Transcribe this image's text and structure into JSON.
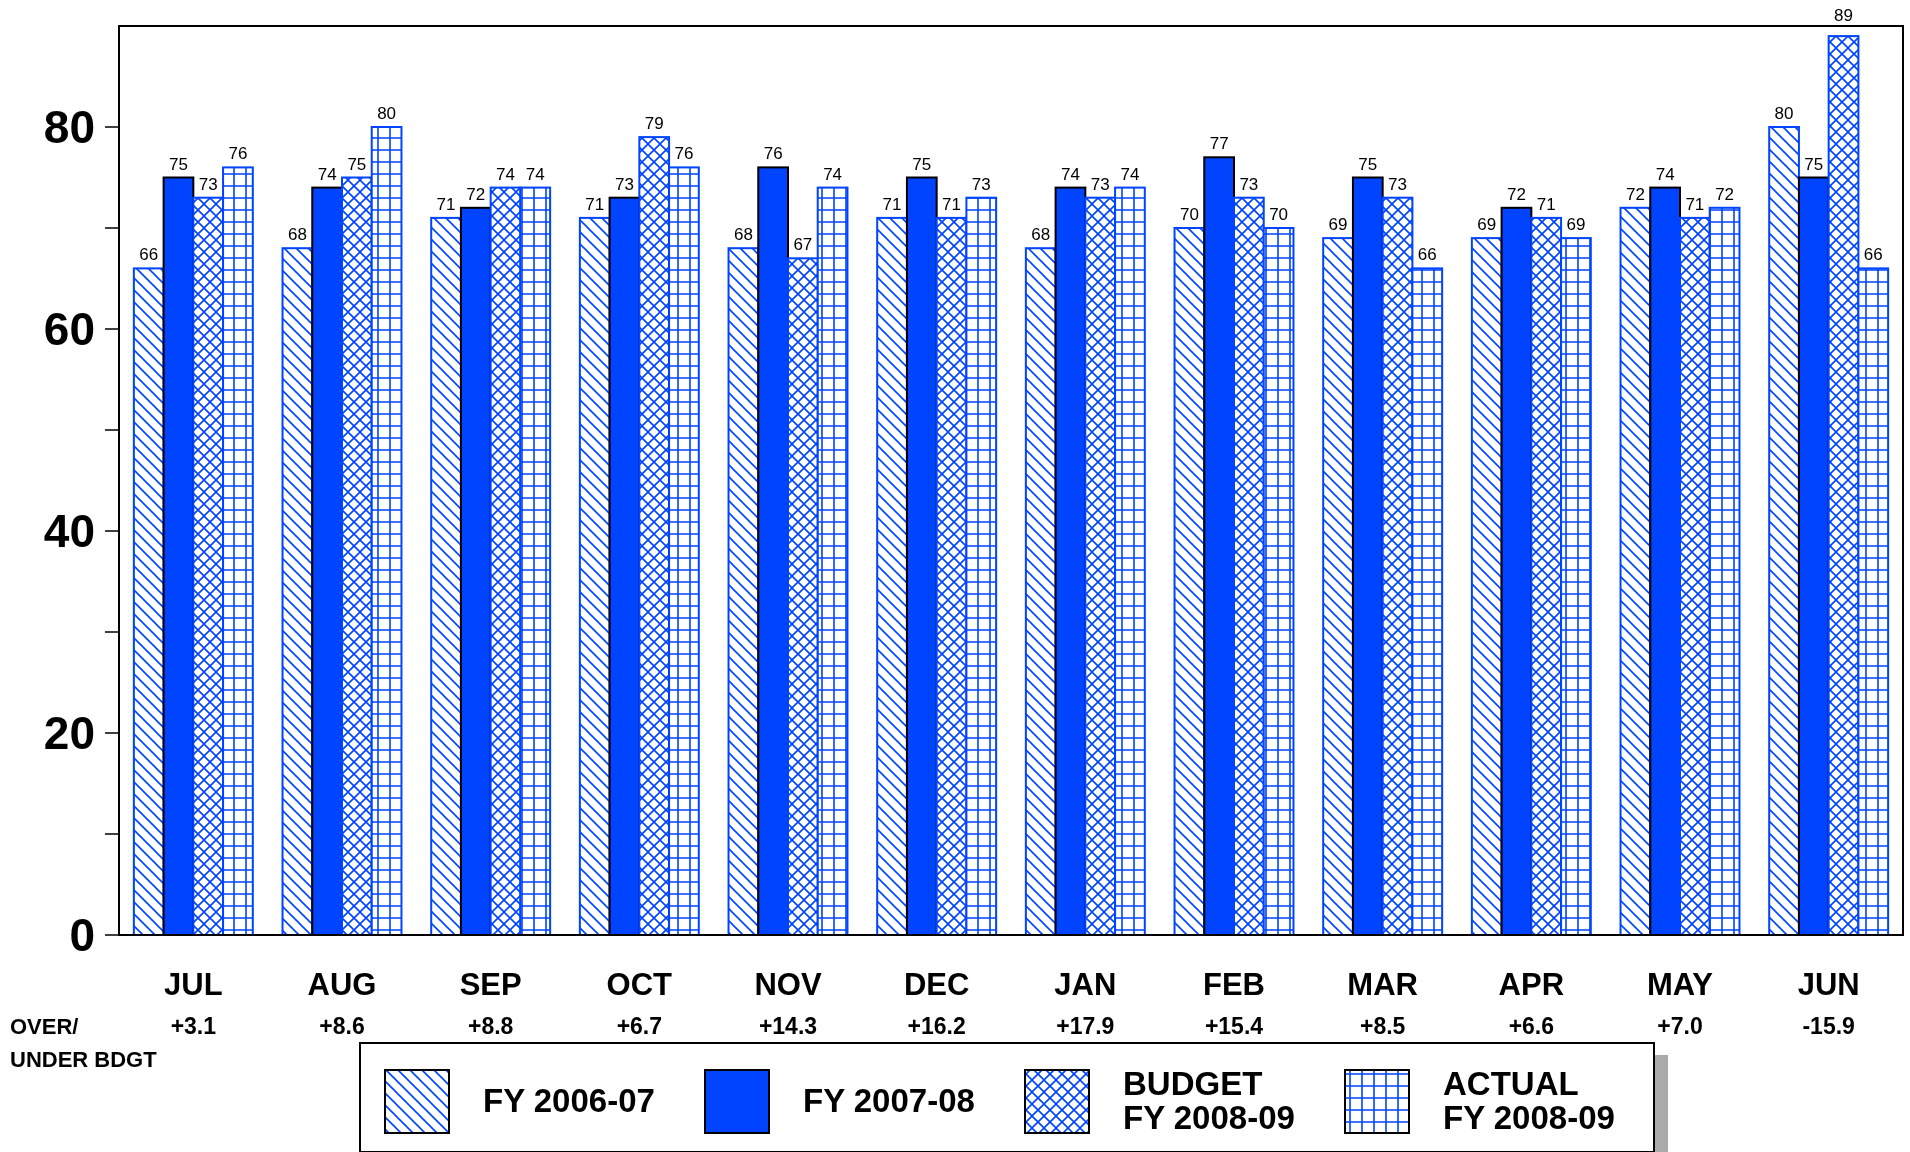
{
  "chart_data": {
    "type": "bar",
    "categories": [
      "JUL",
      "AUG",
      "SEP",
      "OCT",
      "NOV",
      "DEC",
      "JAN",
      "FEB",
      "MAR",
      "APR",
      "MAY",
      "JUN"
    ],
    "series": [
      {
        "name": "FY 2006-07",
        "color": "#0044ff",
        "values": [
          66,
          68,
          71,
          71,
          68,
          71,
          68,
          70,
          69,
          69,
          72,
          80
        ]
      },
      {
        "name": "FY 2007-08",
        "color": "#0044ff",
        "values": [
          75,
          74,
          72,
          73,
          76,
          75,
          74,
          77,
          75,
          72,
          74,
          75
        ]
      },
      {
        "name": "BUDGET FY 2008-09",
        "color": "#0044ff",
        "values": [
          73,
          75,
          74,
          79,
          67,
          71,
          73,
          73,
          73,
          71,
          71,
          89
        ]
      },
      {
        "name": "ACTUAL FY 2008-09",
        "color": "#0044ff",
        "values": [
          76,
          80,
          74,
          76,
          74,
          73,
          74,
          70,
          66,
          69,
          72,
          66
        ]
      }
    ],
    "ylim": [
      0,
      90
    ],
    "yticks": [
      0,
      {
        "value": 10,
        "label": null
      },
      20,
      {
        "value": 30,
        "label": null
      },
      40,
      {
        "value": 50,
        "label": null
      },
      60,
      {
        "value": 70,
        "label": null
      },
      80
    ],
    "data_labels": true,
    "grid": false,
    "legend": "bottom",
    "annotations": [
      "OVER/ UNDER BDGT",
      "+3.1",
      "+8.6",
      "+8.8",
      "+6.7",
      "+14.3",
      "+16.2",
      "+17.9",
      "+15.4",
      "+8.5",
      "+6.6",
      "+7.0",
      "-15.9"
    ]
  }
}
